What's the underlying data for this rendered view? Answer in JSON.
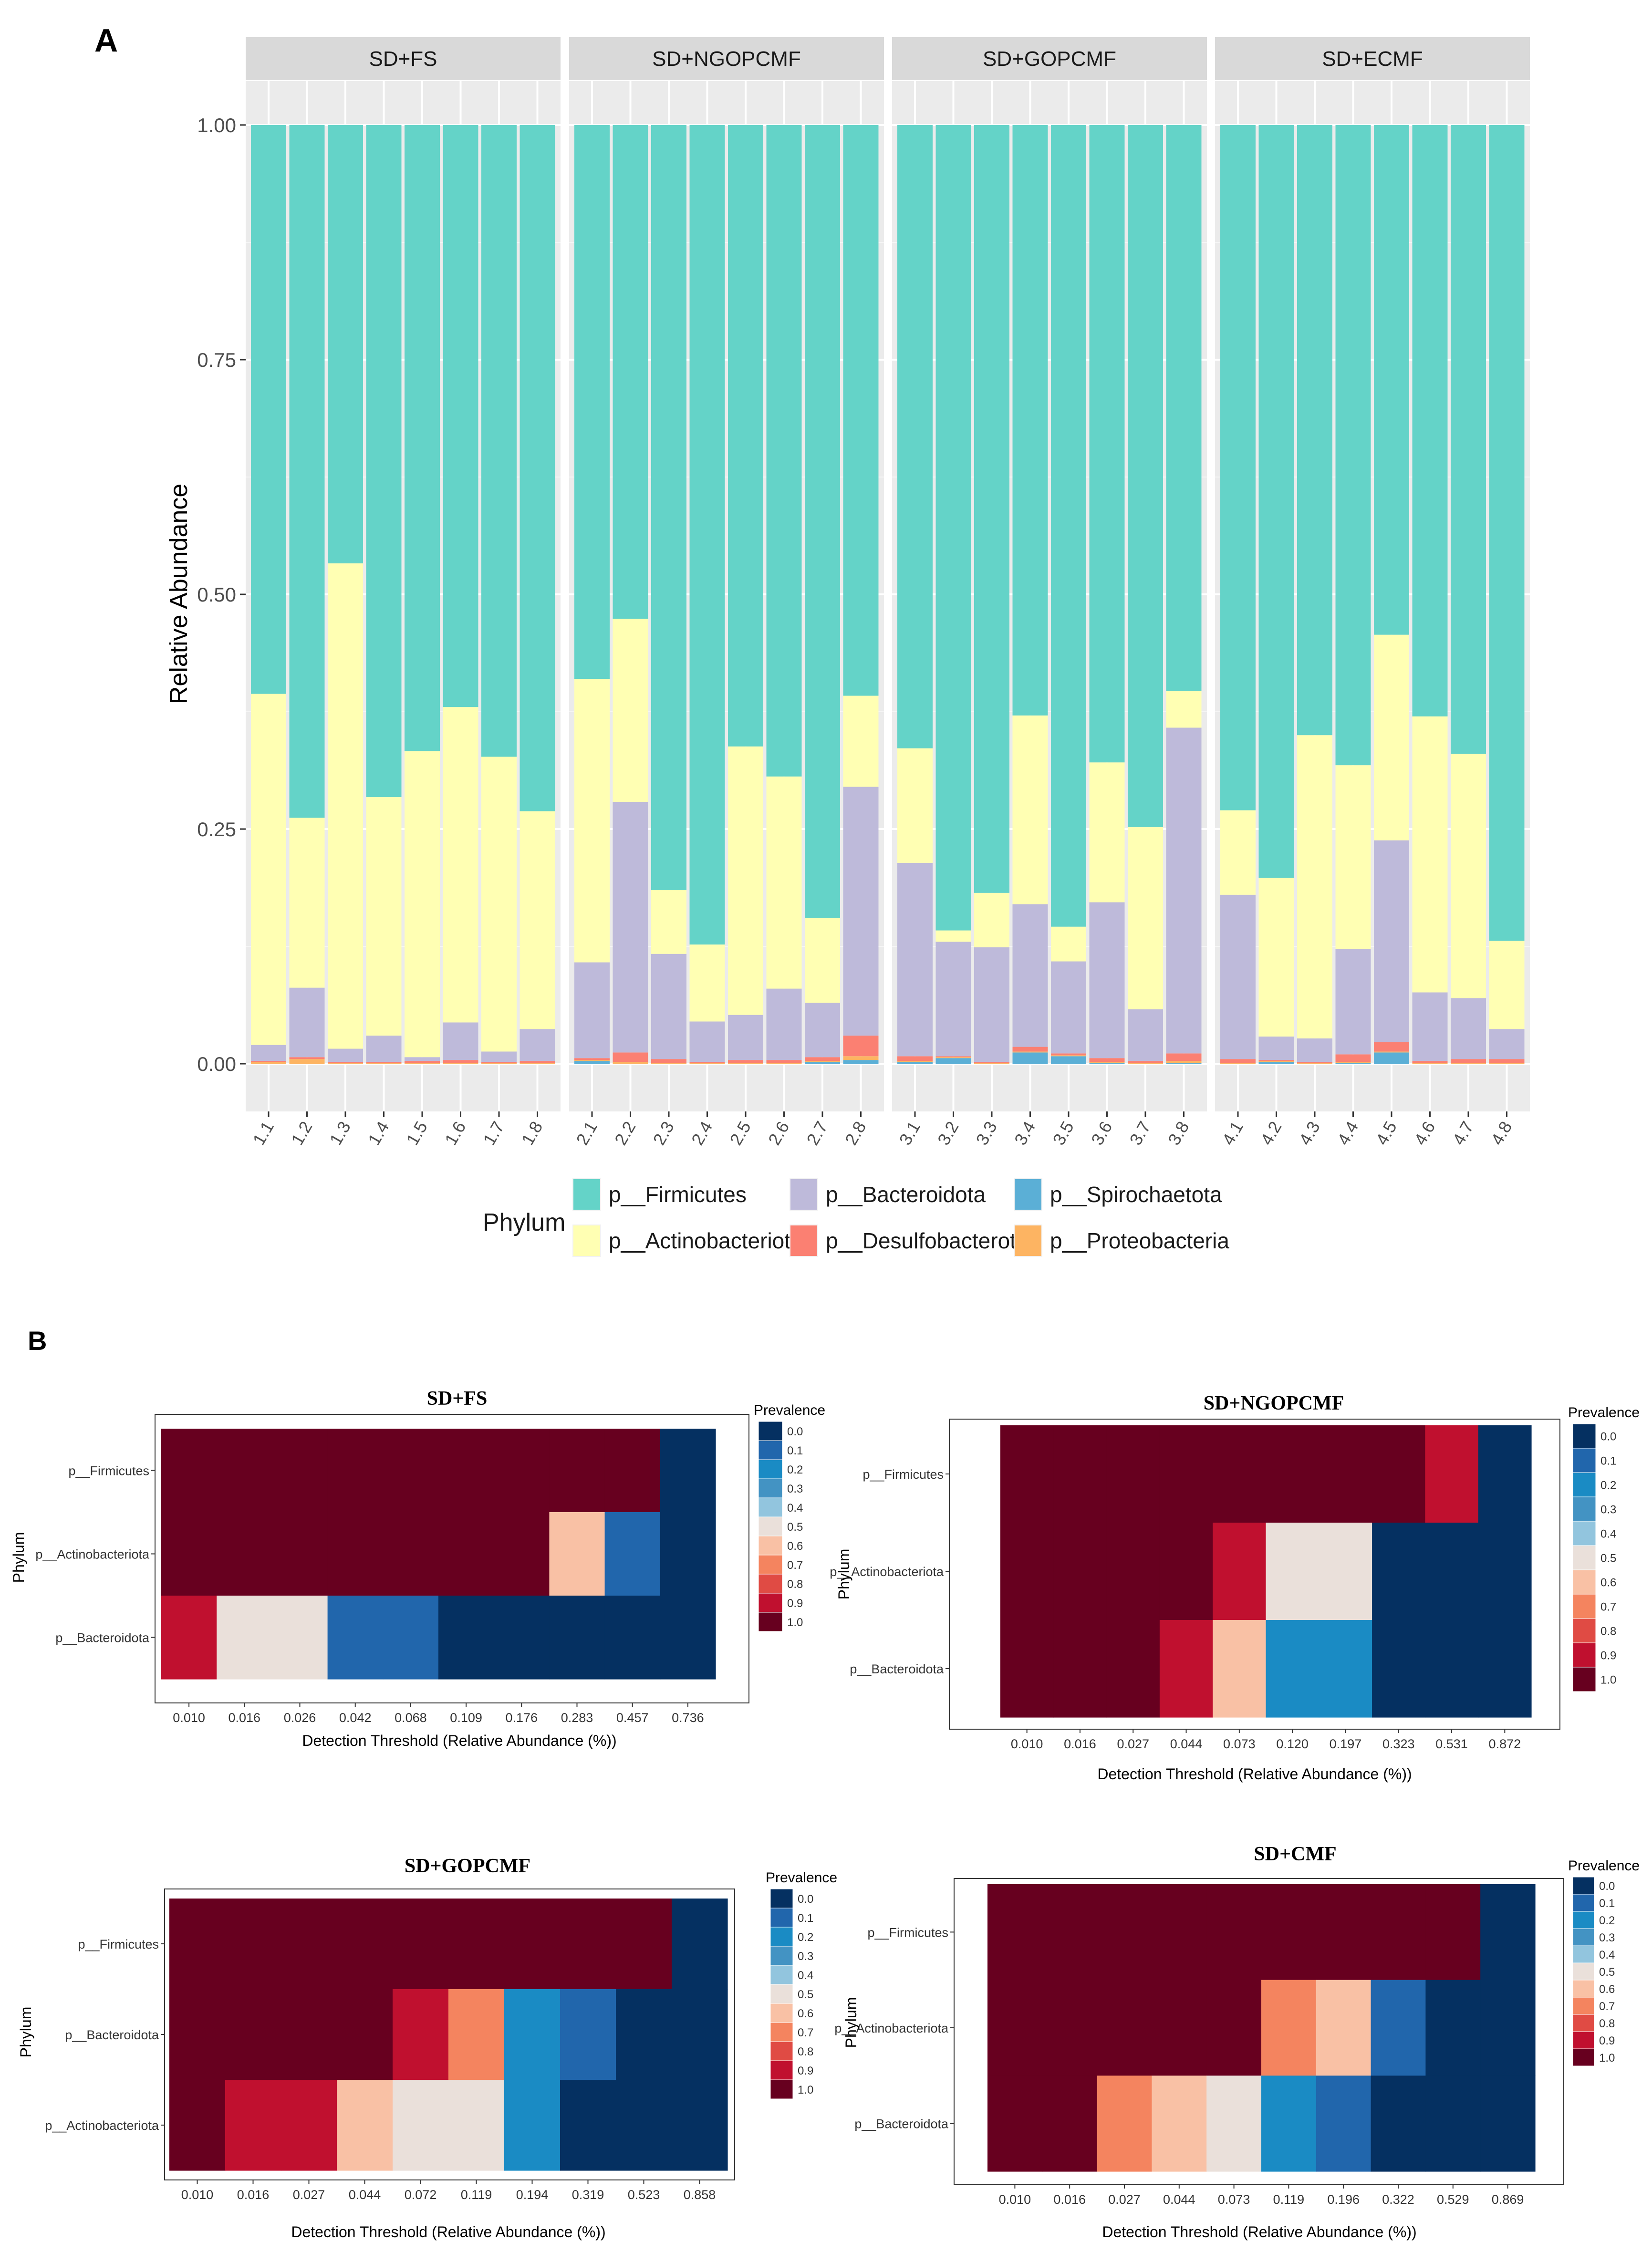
{
  "chart_data": [
    {
      "type": "bar",
      "stacked": true,
      "panel_label": "A",
      "ylabel": "Relative Abundance",
      "ylim": [
        0,
        1
      ],
      "yticks": [
        "0.00",
        "0.25",
        "0.50",
        "0.75",
        "1.00"
      ],
      "legend_title": "Phylum",
      "series": [
        {
          "name": "p__Firmicutes",
          "color": "#64D3C8"
        },
        {
          "name": "p__Actinobacteriota",
          "color": "#FFFFB3"
        },
        {
          "name": "p__Bacteroidota",
          "color": "#BEBADA"
        },
        {
          "name": "p__Desulfobacterota",
          "color": "#FB8072"
        },
        {
          "name": "p__Spirochaetota",
          "color": "#5BAFD6"
        },
        {
          "name": "p__Proteobacteria",
          "color": "#FDB462"
        }
      ],
      "legend_order": [
        [
          "p__Firmicutes",
          "p__Bacteroidota",
          "p__Spirochaetota"
        ],
        [
          "p__Actinobacteriota",
          "p__Desulfobacterota",
          "p__Proteobacteria"
        ]
      ],
      "facets": [
        {
          "title": "SD+FS",
          "samples": [
            {
              "label": "1.1",
              "spiro": 0.0,
              "proteo": 0.002,
              "desulfo": 0.001,
              "bact": 0.017,
              "actino": 0.374
            },
            {
              "label": "1.2",
              "spiro": 0.0,
              "proteo": 0.005,
              "desulfo": 0.002,
              "bact": 0.074,
              "actino": 0.181
            },
            {
              "label": "1.3",
              "spiro": 0.0,
              "proteo": 0.001,
              "desulfo": 0.001,
              "bact": 0.014,
              "actino": 0.517
            },
            {
              "label": "1.4",
              "spiro": 0.0,
              "proteo": 0.001,
              "desulfo": 0.001,
              "bact": 0.028,
              "actino": 0.254
            },
            {
              "label": "1.5",
              "spiro": 0.0,
              "proteo": 0.001,
              "desulfo": 0.002,
              "bact": 0.004,
              "actino": 0.326
            },
            {
              "label": "1.6",
              "spiro": 0.0,
              "proteo": 0.001,
              "desulfo": 0.003,
              "bact": 0.04,
              "actino": 0.336
            },
            {
              "label": "1.7",
              "spiro": 0.0,
              "proteo": 0.001,
              "desulfo": 0.001,
              "bact": 0.011,
              "actino": 0.314
            },
            {
              "label": "1.8",
              "spiro": 0.0,
              "proteo": 0.001,
              "desulfo": 0.002,
              "bact": 0.034,
              "actino": 0.232
            }
          ]
        },
        {
          "title": "SD+NGOPCMF",
          "samples": [
            {
              "label": "2.1",
              "spiro": 0.003,
              "proteo": 0.001,
              "desulfo": 0.002,
              "bact": 0.102,
              "actino": 0.302
            },
            {
              "label": "2.2",
              "spiro": 0.0,
              "proteo": 0.002,
              "desulfo": 0.01,
              "bact": 0.267,
              "actino": 0.195
            },
            {
              "label": "2.3",
              "spiro": 0.0,
              "proteo": 0.001,
              "desulfo": 0.004,
              "bact": 0.112,
              "actino": 0.068
            },
            {
              "label": "2.4",
              "spiro": 0.0,
              "proteo": 0.001,
              "desulfo": 0.001,
              "bact": 0.043,
              "actino": 0.082
            },
            {
              "label": "2.5",
              "spiro": 0.0,
              "proteo": 0.001,
              "desulfo": 0.003,
              "bact": 0.048,
              "actino": 0.286
            },
            {
              "label": "2.6",
              "spiro": 0.0,
              "proteo": 0.001,
              "desulfo": 0.003,
              "bact": 0.076,
              "actino": 0.226
            },
            {
              "label": "2.7",
              "spiro": 0.002,
              "proteo": 0.001,
              "desulfo": 0.004,
              "bact": 0.058,
              "actino": 0.09
            },
            {
              "label": "2.8",
              "spiro": 0.004,
              "proteo": 0.004,
              "desulfo": 0.022,
              "bact": 0.265,
              "actino": 0.097
            }
          ]
        },
        {
          "title": "SD+GOPCMF",
          "samples": [
            {
              "label": "3.1",
              "spiro": 0.002,
              "proteo": 0.001,
              "desulfo": 0.005,
              "bact": 0.206,
              "actino": 0.122
            },
            {
              "label": "3.2",
              "spiro": 0.006,
              "proteo": 0.001,
              "desulfo": 0.001,
              "bact": 0.122,
              "actino": 0.012
            },
            {
              "label": "3.3",
              "spiro": 0.0,
              "proteo": 0.001,
              "desulfo": 0.001,
              "bact": 0.122,
              "actino": 0.058
            },
            {
              "label": "3.4",
              "spiro": 0.012,
              "proteo": 0.001,
              "desulfo": 0.005,
              "bact": 0.152,
              "actino": 0.201
            },
            {
              "label": "3.5",
              "spiro": 0.008,
              "proteo": 0.001,
              "desulfo": 0.002,
              "bact": 0.098,
              "actino": 0.037
            },
            {
              "label": "3.6",
              "spiro": 0.001,
              "proteo": 0.001,
              "desulfo": 0.004,
              "bact": 0.166,
              "actino": 0.149
            },
            {
              "label": "3.7",
              "spiro": 0.0,
              "proteo": 0.001,
              "desulfo": 0.002,
              "bact": 0.055,
              "actino": 0.194
            },
            {
              "label": "3.8",
              "spiro": 0.001,
              "proteo": 0.002,
              "desulfo": 0.008,
              "bact": 0.347,
              "actino": 0.039
            }
          ]
        },
        {
          "title": "SD+ECMF",
          "samples": [
            {
              "label": "4.1",
              "spiro": 0.0,
              "proteo": 0.001,
              "desulfo": 0.004,
              "bact": 0.175,
              "actino": 0.09
            },
            {
              "label": "4.2",
              "spiro": 0.002,
              "proteo": 0.001,
              "desulfo": 0.001,
              "bact": 0.025,
              "actino": 0.169
            },
            {
              "label": "4.3",
              "spiro": 0.0,
              "proteo": 0.001,
              "desulfo": 0.001,
              "bact": 0.025,
              "actino": 0.323
            },
            {
              "label": "4.4",
              "spiro": 0.001,
              "proteo": 0.001,
              "desulfo": 0.008,
              "bact": 0.112,
              "actino": 0.196
            },
            {
              "label": "4.5",
              "spiro": 0.012,
              "proteo": 0.001,
              "desulfo": 0.01,
              "bact": 0.215,
              "actino": 0.219
            },
            {
              "label": "4.6",
              "spiro": 0.0,
              "proteo": 0.001,
              "desulfo": 0.002,
              "bact": 0.073,
              "actino": 0.294
            },
            {
              "label": "4.7",
              "spiro": 0.0,
              "proteo": 0.001,
              "desulfo": 0.004,
              "bact": 0.065,
              "actino": 0.26
            },
            {
              "label": "4.8",
              "spiro": 0.0,
              "proteo": 0.001,
              "desulfo": 0.004,
              "bact": 0.032,
              "actino": 0.094
            }
          ]
        }
      ]
    },
    {
      "type": "heatmap",
      "panel_label": "B",
      "xlabel": "Detection Threshold (Relative Abundance (%))",
      "ylabel": "Phylum",
      "legend_title": "Prevalence",
      "legend_levels": [
        "0.0",
        "0.1",
        "0.2",
        "0.3",
        "0.4",
        "0.5",
        "0.6",
        "0.7",
        "0.8",
        "0.9",
        "1.0"
      ],
      "legend_colors": [
        "#053061",
        "#2166AC",
        "#1A8BC4",
        "#4393C3",
        "#92C5DE",
        "#EAE0DA",
        "#F9C1A5",
        "#F4845F",
        "#E04B44",
        "#C0102F",
        "#67001F"
      ],
      "panels": [
        {
          "title": "SD+FS",
          "thresholds": [
            "0.010",
            "0.016",
            "0.026",
            "0.042",
            "0.068",
            "0.109",
            "0.176",
            "0.283",
            "0.457",
            "0.736"
          ],
          "rows": [
            {
              "label": "p__Firmicutes",
              "values": [
                1.0,
                1.0,
                1.0,
                1.0,
                1.0,
                1.0,
                1.0,
                1.0,
                1.0,
                0.0
              ]
            },
            {
              "label": "p__Actinobacteriota",
              "values": [
                1.0,
                1.0,
                1.0,
                1.0,
                1.0,
                1.0,
                1.0,
                0.6,
                0.1,
                0.0
              ]
            },
            {
              "label": "p__Bacteroidota",
              "values": [
                0.9,
                0.5,
                0.5,
                0.1,
                0.1,
                0.0,
                0.0,
                0.0,
                0.0,
                0.0
              ]
            }
          ]
        },
        {
          "title": "SD+NGOPCMF",
          "thresholds": [
            "0.010",
            "0.016",
            "0.027",
            "0.044",
            "0.073",
            "0.120",
            "0.197",
            "0.323",
            "0.531",
            "0.872"
          ],
          "rows": [
            {
              "label": "p__Firmicutes",
              "values": [
                1.0,
                1.0,
                1.0,
                1.0,
                1.0,
                1.0,
                1.0,
                1.0,
                0.9,
                0.0
              ]
            },
            {
              "label": "p__Actinobacteriota",
              "values": [
                1.0,
                1.0,
                1.0,
                1.0,
                0.9,
                0.5,
                0.5,
                0.0,
                0.0,
                0.0
              ]
            },
            {
              "label": "p__Bacteroidota",
              "values": [
                1.0,
                1.0,
                1.0,
                0.9,
                0.6,
                0.2,
                0.2,
                0.0,
                0.0,
                0.0
              ]
            }
          ]
        },
        {
          "title": "SD+GOPCMF",
          "thresholds": [
            "0.010",
            "0.016",
            "0.027",
            "0.044",
            "0.072",
            "0.119",
            "0.194",
            "0.319",
            "0.523",
            "0.858"
          ],
          "rows": [
            {
              "label": "p__Firmicutes",
              "values": [
                1.0,
                1.0,
                1.0,
                1.0,
                1.0,
                1.0,
                1.0,
                1.0,
                1.0,
                0.0
              ]
            },
            {
              "label": "p__Bacteroidota",
              "values": [
                1.0,
                1.0,
                1.0,
                1.0,
                0.9,
                0.7,
                0.2,
                0.1,
                0.0,
                0.0
              ]
            },
            {
              "label": "p__Actinobacteriota",
              "values": [
                1.0,
                0.9,
                0.9,
                0.6,
                0.5,
                0.5,
                0.2,
                0.0,
                0.0,
                0.0
              ]
            }
          ]
        },
        {
          "title": "SD+CMF",
          "thresholds": [
            "0.010",
            "0.016",
            "0.027",
            "0.044",
            "0.073",
            "0.119",
            "0.196",
            "0.322",
            "0.529",
            "0.869"
          ],
          "rows": [
            {
              "label": "p__Firmicutes",
              "values": [
                1.0,
                1.0,
                1.0,
                1.0,
                1.0,
                1.0,
                1.0,
                1.0,
                1.0,
                0.0
              ]
            },
            {
              "label": "p__Actinobacteriota",
              "values": [
                1.0,
                1.0,
                1.0,
                1.0,
                1.0,
                0.7,
                0.6,
                0.1,
                0.0,
                0.0
              ]
            },
            {
              "label": "p__Bacteroidota",
              "values": [
                1.0,
                1.0,
                0.7,
                0.6,
                0.5,
                0.2,
                0.1,
                0.0,
                0.0,
                0.0
              ]
            }
          ]
        }
      ]
    }
  ]
}
